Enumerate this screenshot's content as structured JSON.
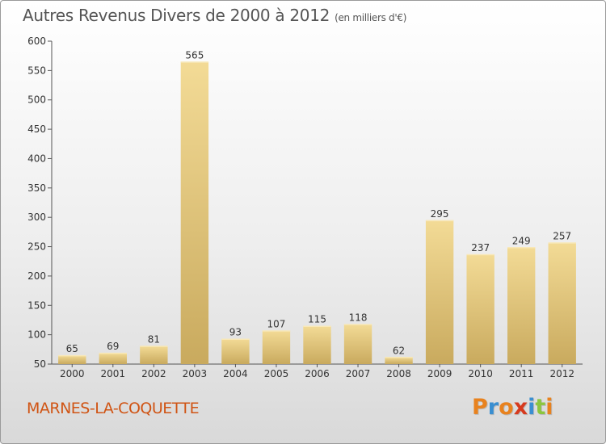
{
  "chart_data": {
    "type": "bar",
    "title": "Autres Revenus Divers de 2000 à 2012",
    "subtitle": "(en milliers d'€)",
    "categories": [
      "2000",
      "2001",
      "2002",
      "2003",
      "2004",
      "2005",
      "2006",
      "2007",
      "2008",
      "2009",
      "2010",
      "2011",
      "2012"
    ],
    "values": [
      65,
      69,
      81,
      565,
      93,
      107,
      115,
      118,
      62,
      295,
      237,
      249,
      257
    ],
    "data_labels": [
      "65",
      "69",
      "81",
      "565",
      "93",
      "107",
      "115",
      "118",
      "62",
      "295",
      "237",
      "249",
      "257"
    ],
    "ylim": [
      50,
      600
    ],
    "yticks": [
      50,
      100,
      150,
      200,
      250,
      300,
      350,
      400,
      450,
      500,
      550,
      600
    ],
    "ytick_labels": [
      "50",
      "100",
      "150",
      "200",
      "250",
      "300",
      "350",
      "400",
      "450",
      "500",
      "550",
      "600"
    ],
    "xlabel": "",
    "ylabel": "",
    "grid": false,
    "bar_color": "#e2c77c"
  },
  "footer": {
    "commune": "MARNES-LA-COQUETTE",
    "logo_letters": [
      "P",
      "r",
      "o",
      "x",
      "i",
      "t",
      "i"
    ],
    "logo_colors": [
      "#e8821e",
      "#3a8fd1",
      "#e8821e",
      "#d63a1e",
      "#3a8fd1",
      "#8cc63e",
      "#e8821e"
    ]
  },
  "colors": {
    "commune": "#d05414",
    "title": "#555555"
  }
}
